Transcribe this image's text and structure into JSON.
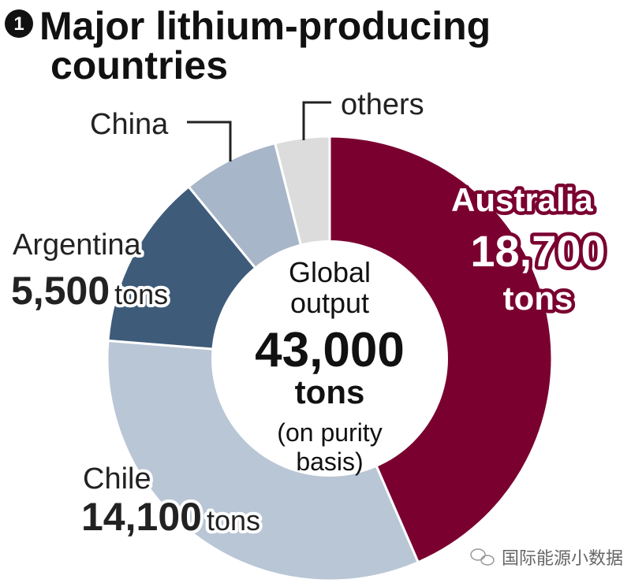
{
  "title": {
    "number": "1",
    "line1": "Major lithium-producing",
    "line2": "countries"
  },
  "chart_data": {
    "type": "pie",
    "donut": true,
    "unit": "tons",
    "categories": [
      "Australia",
      "Chile",
      "Argentina",
      "China",
      "others"
    ],
    "values": [
      18700,
      14100,
      5500,
      3000,
      1700
    ],
    "colors": [
      "#7a0030",
      "#b9c6d5",
      "#3e5b7a",
      "#a7b6c8",
      "#dcdcdc"
    ],
    "center": {
      "line1": "Global",
      "line2": "output",
      "value": "43,000",
      "unit": "tons",
      "note1": "(on purity",
      "note2": "basis)"
    },
    "labels": {
      "australia": {
        "name": "Australia",
        "value": "18,700",
        "unit": "tons"
      },
      "chile": {
        "name": "Chile",
        "value": "14,100",
        "unit": "tons"
      },
      "argentina": {
        "name": "Argentina",
        "value": "5,500",
        "unit": "tons"
      },
      "china": {
        "name": "China"
      },
      "others": {
        "name": "others"
      }
    }
  },
  "watermark": "国际能源小数据"
}
